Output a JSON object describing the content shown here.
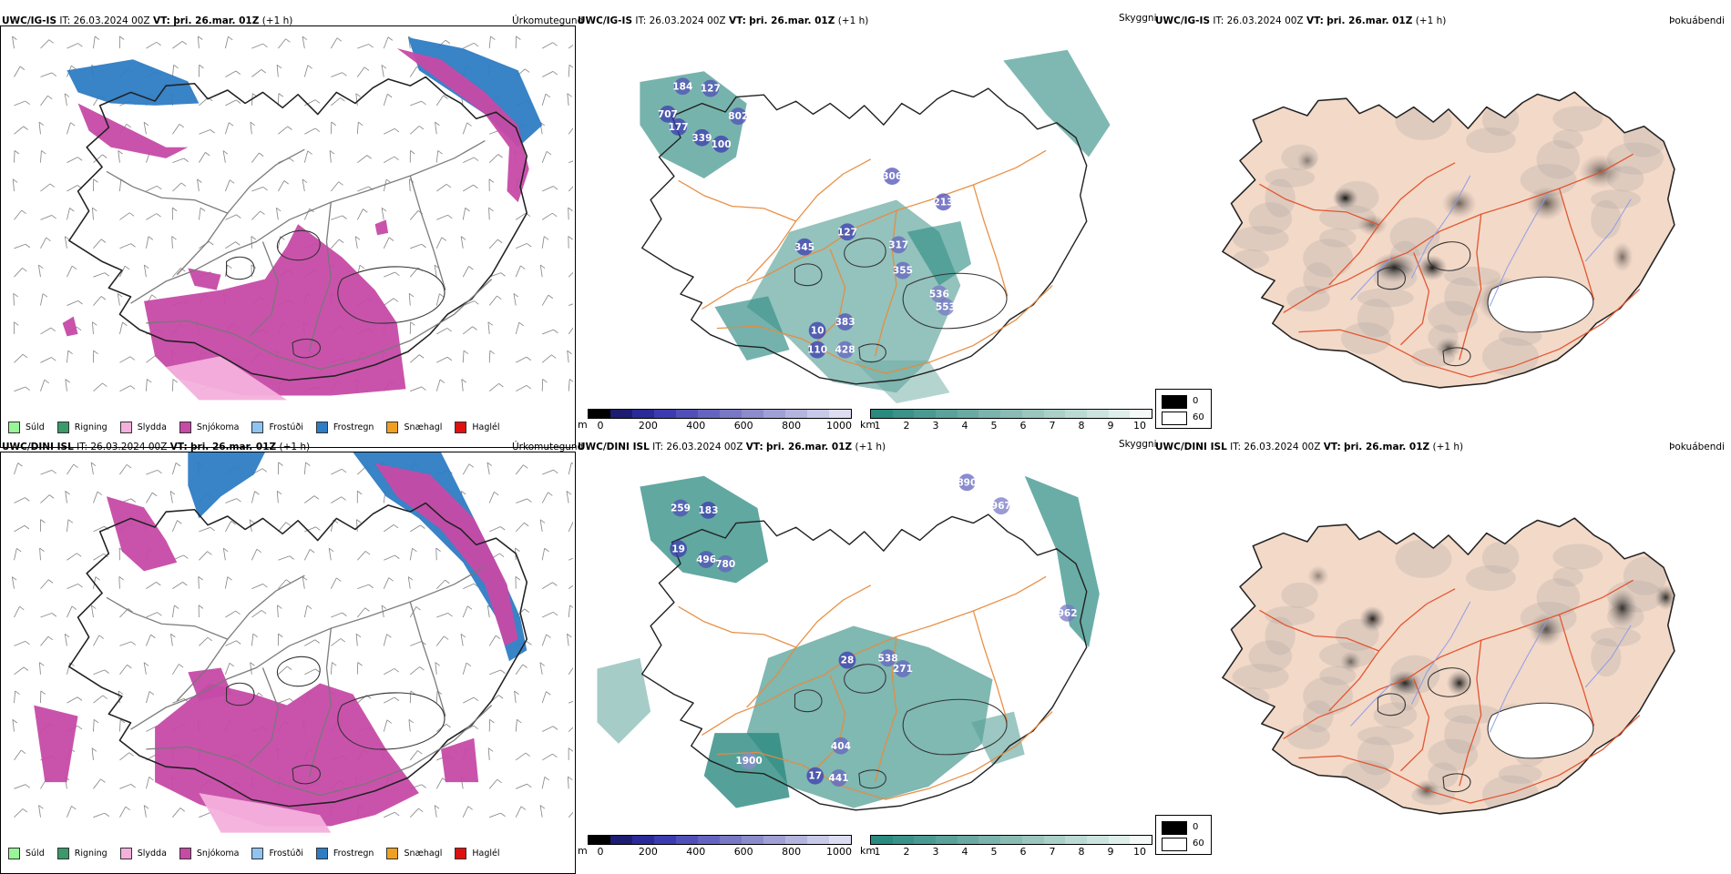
{
  "rows": [
    {
      "model": "UWC/IG-IS",
      "it_label": "IT:",
      "it_value": "26.03.2024 00Z",
      "vt_label": "VT:",
      "vt_value": "þri. 26.mar. 01Z",
      "offset": "(+1 h)",
      "titles": {
        "precip": "Úrkomutegund",
        "vis": "Skyggni",
        "fog": "Þokuábendi"
      },
      "vis_labels": [
        "184",
        "127",
        "707",
        "177",
        "339",
        "100",
        "802",
        "306",
        "213",
        "127",
        "345",
        "317",
        "355",
        "536",
        "553",
        "383",
        "10",
        "110",
        "428"
      ]
    },
    {
      "model": "UWC/DINI ISL",
      "it_label": "IT:",
      "it_value": "26.03.2024 00Z",
      "vt_label": "VT:",
      "vt_value": "þri. 26.mar. 01Z",
      "offset": "(+1 h)",
      "titles": {
        "precip": "Úrkomutegund",
        "vis": "Skyggni",
        "fog": "Þokuábendi"
      },
      "vis_labels": [
        "259",
        "183",
        "19",
        "496",
        "780",
        "890",
        "967",
        "962",
        "28",
        "538",
        "271",
        "404",
        "1900",
        "17",
        "441"
      ]
    }
  ],
  "precip_legend": [
    {
      "label": "Súld",
      "color": "#98f598"
    },
    {
      "label": "Rigning",
      "color": "#3a9a6a"
    },
    {
      "label": "Slydda",
      "color": "#f4b0dc"
    },
    {
      "label": "Snjókoma",
      "color": "#c64aa6"
    },
    {
      "label": "Frostúði",
      "color": "#8ec4f2"
    },
    {
      "label": "Frostregn",
      "color": "#2e7cc4"
    },
    {
      "label": "Snæhagl",
      "color": "#f0a020"
    },
    {
      "label": "Haglél",
      "color": "#e01010"
    }
  ],
  "vis_scale_m": {
    "unit": "m",
    "ticks": [
      "0",
      "200",
      "400",
      "600",
      "800",
      "1000"
    ],
    "colors": [
      "#000000",
      "#1c1c70",
      "#2a2a98",
      "#3c3cb0",
      "#5050b8",
      "#6464c0",
      "#7878c6",
      "#8c8ccc",
      "#a0a0d6",
      "#b4b4de",
      "#c8c8e8",
      "#dcdcf2"
    ]
  },
  "vis_scale_km": {
    "unit": "km",
    "ticks": [
      "1",
      "2",
      "3",
      "4",
      "5",
      "6",
      "7",
      "8",
      "9",
      "10"
    ],
    "colors": [
      "#2a8a80",
      "#3a928a",
      "#4a9a92",
      "#5aa29a",
      "#6aaaa2",
      "#7ab4ac",
      "#8abcb4",
      "#9ac6be",
      "#aad0c8",
      "#bcdad4",
      "#ccE4de",
      "#deeeea",
      "#f4faf8"
    ]
  },
  "fog_legend": {
    "values": [
      "0",
      "60"
    ]
  }
}
